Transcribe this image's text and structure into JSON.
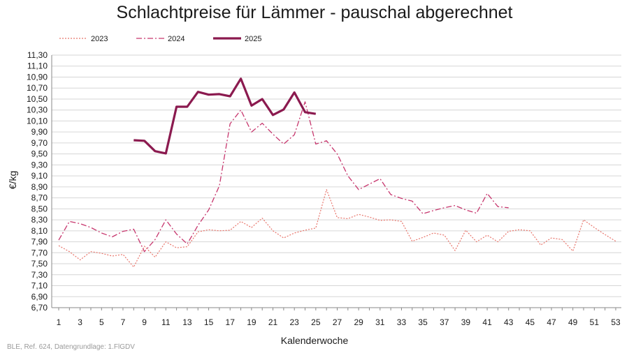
{
  "chart_data": {
    "type": "line",
    "title": "Schlachtpreise für Lämmer - pauschal abgerechnet",
    "xlabel": "Kalenderwoche",
    "ylabel": "€/kg",
    "source": "BLE, Ref. 624, Datengrundlage: 1.FlGDV",
    "xlim": [
      1,
      53
    ],
    "ylim": [
      6.7,
      11.3
    ],
    "xticks": [
      "1",
      "3",
      "5",
      "7",
      "9",
      "11",
      "13",
      "15",
      "17",
      "19",
      "21",
      "23",
      "25",
      "27",
      "29",
      "31",
      "33",
      "35",
      "37",
      "39",
      "41",
      "43",
      "45",
      "47",
      "49",
      "51",
      "53"
    ],
    "yticks": [
      "6,70",
      "6,90",
      "7,10",
      "7,30",
      "7,50",
      "7,70",
      "7,90",
      "8,10",
      "8,30",
      "8,50",
      "8,70",
      "8,90",
      "9,10",
      "9,30",
      "9,50",
      "9,70",
      "9,90",
      "10,10",
      "10,30",
      "10,50",
      "10,70",
      "10,90",
      "11,10",
      "11,30"
    ],
    "grid": true,
    "legend_position": "top-left",
    "series": [
      {
        "name": "2023",
        "color": "#e8756b",
        "style": "dotted",
        "x": [
          1,
          2,
          3,
          4,
          5,
          6,
          7,
          8,
          9,
          10,
          11,
          12,
          13,
          14,
          15,
          16,
          17,
          18,
          19,
          20,
          21,
          22,
          23,
          24,
          25,
          26,
          27,
          28,
          29,
          30,
          31,
          32,
          33,
          34,
          35,
          36,
          37,
          38,
          39,
          40,
          41,
          42,
          43,
          44,
          45,
          46,
          47,
          48,
          49,
          50,
          51,
          52,
          53
        ],
        "values": [
          7.83,
          7.72,
          7.57,
          7.72,
          7.69,
          7.64,
          7.67,
          7.44,
          7.82,
          7.62,
          7.9,
          7.79,
          7.81,
          8.08,
          8.12,
          8.1,
          8.11,
          8.27,
          8.16,
          8.33,
          8.1,
          7.97,
          8.06,
          8.11,
          8.15,
          8.85,
          8.34,
          8.32,
          8.4,
          8.35,
          8.29,
          8.3,
          8.27,
          7.91,
          7.98,
          8.06,
          8.02,
          7.74,
          8.11,
          7.9,
          8.02,
          7.9,
          8.09,
          8.12,
          8.1,
          7.84,
          7.97,
          7.94,
          7.73,
          8.3,
          8.16,
          8.03,
          7.91
        ]
      },
      {
        "name": "2024",
        "color": "#c7376e",
        "style": "dashdot",
        "x": [
          1,
          2,
          3,
          4,
          5,
          6,
          7,
          8,
          9,
          10,
          11,
          12,
          13,
          14,
          15,
          16,
          17,
          18,
          19,
          20,
          21,
          22,
          23,
          24,
          25,
          26,
          27,
          28,
          29,
          30,
          31,
          32,
          33,
          34,
          35,
          36,
          37,
          38,
          39,
          40,
          41,
          42,
          43
        ],
        "values": [
          7.93,
          8.27,
          8.23,
          8.16,
          8.06,
          7.99,
          8.09,
          8.13,
          7.72,
          7.94,
          8.3,
          8.04,
          7.86,
          8.2,
          8.48,
          8.92,
          10.05,
          10.3,
          9.9,
          10.06,
          9.86,
          9.68,
          9.85,
          10.45,
          9.68,
          9.74,
          9.5,
          9.1,
          8.85,
          8.95,
          9.05,
          8.76,
          8.69,
          8.64,
          8.41,
          8.47,
          8.52,
          8.56,
          8.48,
          8.42,
          8.78,
          8.54,
          8.52
        ]
      },
      {
        "name": "2025",
        "color": "#8b1a4f",
        "style": "solid",
        "x": [
          8,
          9,
          10,
          11,
          12,
          13,
          14,
          15,
          16,
          17,
          18,
          19,
          20,
          21,
          22,
          23,
          24,
          25
        ],
        "values": [
          9.75,
          9.74,
          9.55,
          9.51,
          10.36,
          10.36,
          10.63,
          10.58,
          10.59,
          10.55,
          10.87,
          10.38,
          10.5,
          10.21,
          10.31,
          10.62,
          10.26,
          10.23
        ]
      }
    ]
  }
}
